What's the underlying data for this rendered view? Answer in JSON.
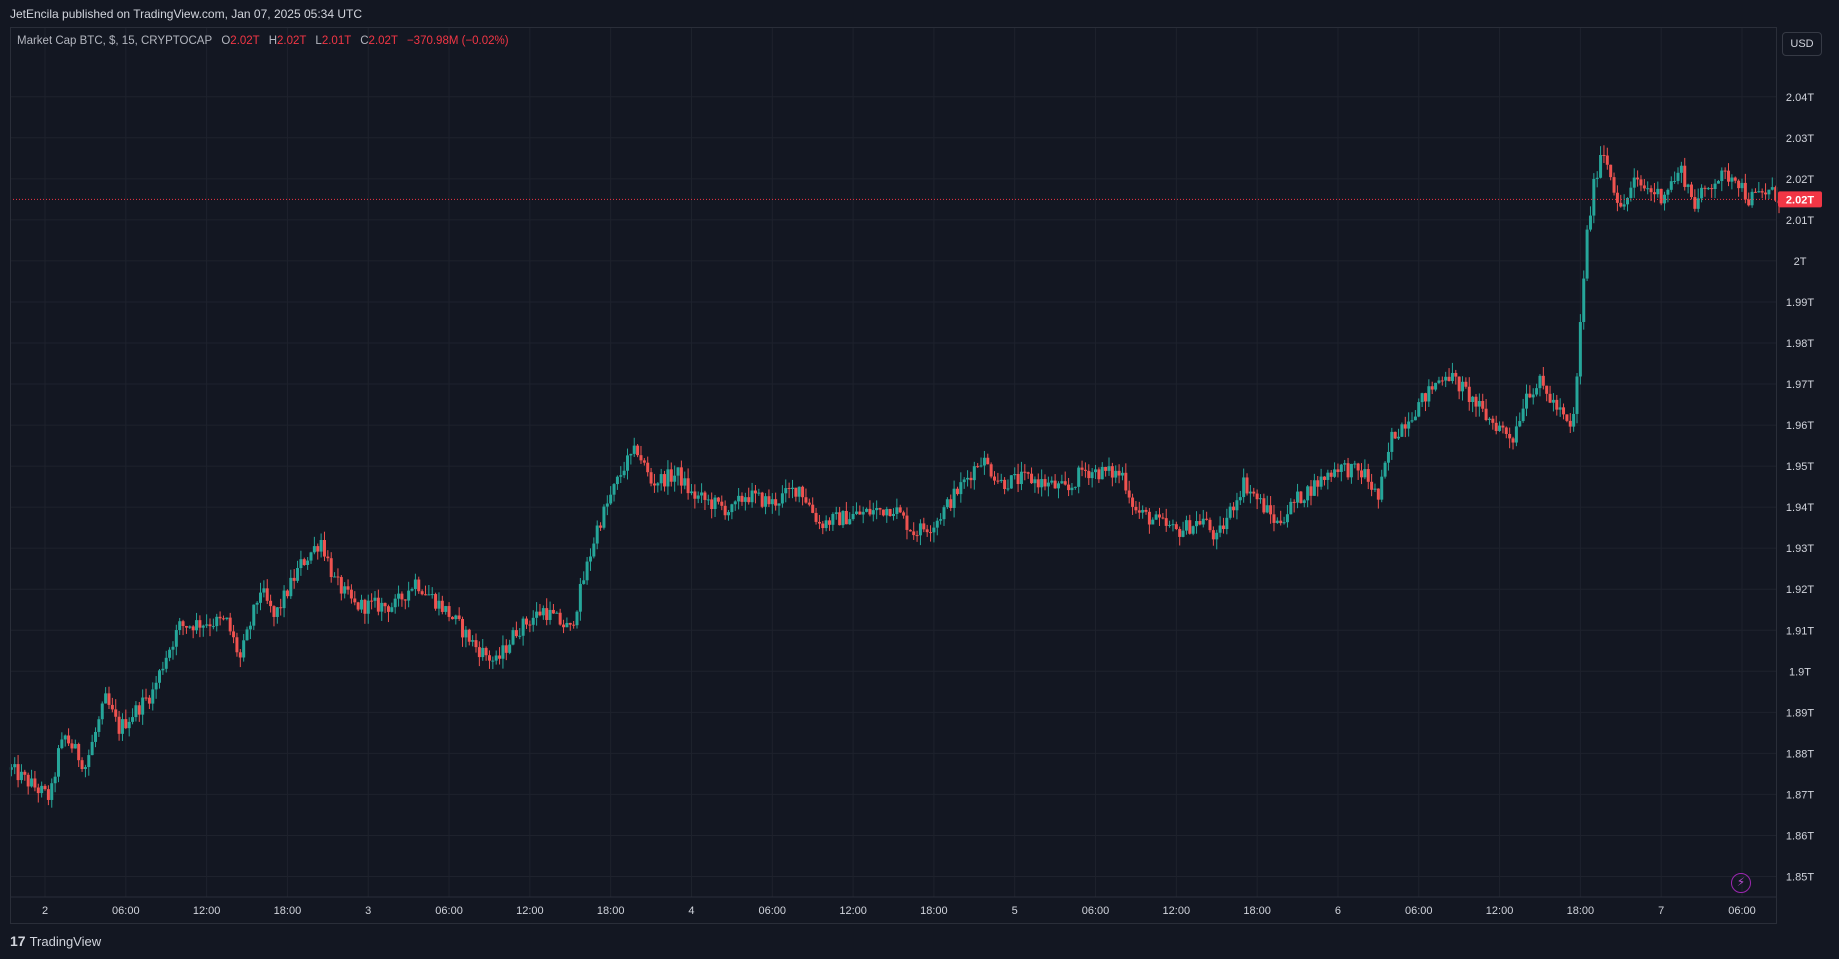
{
  "header": {
    "published_text": "JetEncila published on TradingView.com, Jan 07, 2025 05:34 UTC"
  },
  "legend": {
    "symbol": "Market Cap BTC, $, 15, CRYPTOCAP",
    "o_label": "O",
    "o_value": "2.02T",
    "h_label": "H",
    "h_value": "2.02T",
    "l_label": "L",
    "l_value": "2.01T",
    "c_label": "C",
    "c_value": "2.02T",
    "change": "−370.98M (−0.02%)"
  },
  "currency_button": "USD",
  "footer": {
    "brand": "TradingView",
    "logo": "17"
  },
  "colors": {
    "background": "#131722",
    "grid": "#1e222d",
    "up": "#26a69a",
    "down": "#ef5350",
    "price_line": "#f23645",
    "axis_text": "#d1d4dc"
  },
  "chart_data": {
    "type": "candlestick",
    "title": "Market Cap BTC, $, 15, CRYPTOCAP",
    "interval_minutes": 15,
    "y_unit": "USD (trillions)",
    "ylim": [
      1.845,
      2.057
    ],
    "y_ticks": [
      1.85,
      1.86,
      1.87,
      1.88,
      1.89,
      1.9,
      1.91,
      1.92,
      1.93,
      1.94,
      1.95,
      1.96,
      1.97,
      1.98,
      1.99,
      2.0,
      2.01,
      2.02,
      2.03,
      2.04
    ],
    "y_tick_labels": [
      "1.85T",
      "1.86T",
      "1.87T",
      "1.88T",
      "1.89T",
      "1.9T",
      "1.91T",
      "1.92T",
      "1.93T",
      "1.94T",
      "1.95T",
      "1.96T",
      "1.97T",
      "1.98T",
      "1.99T",
      "2T",
      "2.01T",
      "2.02T",
      "2.03T",
      "2.04T"
    ],
    "x_ticks": [
      {
        "label": "2",
        "hours": 0
      },
      {
        "label": "06:00",
        "hours": 6
      },
      {
        "label": "12:00",
        "hours": 12
      },
      {
        "label": "18:00",
        "hours": 18
      },
      {
        "label": "3",
        "hours": 24
      },
      {
        "label": "06:00",
        "hours": 30
      },
      {
        "label": "12:00",
        "hours": 36
      },
      {
        "label": "18:00",
        "hours": 42
      },
      {
        "label": "4",
        "hours": 48
      },
      {
        "label": "06:00",
        "hours": 54
      },
      {
        "label": "12:00",
        "hours": 60
      },
      {
        "label": "18:00",
        "hours": 66
      },
      {
        "label": "5",
        "hours": 72
      },
      {
        "label": "06:00",
        "hours": 78
      },
      {
        "label": "12:00",
        "hours": 84
      },
      {
        "label": "18:00",
        "hours": 90
      },
      {
        "label": "6",
        "hours": 96
      },
      {
        "label": "06:00",
        "hours": 102
      },
      {
        "label": "12:00",
        "hours": 108
      },
      {
        "label": "18:00",
        "hours": 114
      },
      {
        "label": "7",
        "hours": 120
      },
      {
        "label": "06:00",
        "hours": 126
      }
    ],
    "x_range_hours": [
      -2.6,
      128.6
    ],
    "last_price": 2.015,
    "last_price_label": "2.02T",
    "close_path": [
      {
        "h": -2.5,
        "v": 1.876
      },
      {
        "h": 0,
        "v": 1.87
      },
      {
        "h": 0.4,
        "v": 1.869
      },
      {
        "h": 1.0,
        "v": 1.88
      },
      {
        "h": 1.5,
        "v": 1.884
      },
      {
        "h": 3,
        "v": 1.877
      },
      {
        "h": 4.5,
        "v": 1.893
      },
      {
        "h": 5.5,
        "v": 1.886
      },
      {
        "h": 8,
        "v": 1.895
      },
      {
        "h": 9,
        "v": 1.904
      },
      {
        "h": 10,
        "v": 1.911
      },
      {
        "h": 12,
        "v": 1.912
      },
      {
        "h": 13.5,
        "v": 1.912
      },
      {
        "h": 14.5,
        "v": 1.903
      },
      {
        "h": 16,
        "v": 1.92
      },
      {
        "h": 17,
        "v": 1.913
      },
      {
        "h": 19,
        "v": 1.926
      },
      {
        "h": 20.5,
        "v": 1.932
      },
      {
        "h": 21.5,
        "v": 1.922
      },
      {
        "h": 23,
        "v": 1.916
      },
      {
        "h": 26,
        "v": 1.916
      },
      {
        "h": 27.5,
        "v": 1.922
      },
      {
        "h": 30,
        "v": 1.914
      },
      {
        "h": 32,
        "v": 1.906
      },
      {
        "h": 33.5,
        "v": 1.902
      },
      {
        "h": 35,
        "v": 1.91
      },
      {
        "h": 37,
        "v": 1.915
      },
      {
        "h": 39,
        "v": 1.91
      },
      {
        "h": 41,
        "v": 1.935
      },
      {
        "h": 43,
        "v": 1.95
      },
      {
        "h": 44,
        "v": 1.954
      },
      {
        "h": 45,
        "v": 1.946
      },
      {
        "h": 47,
        "v": 1.948
      },
      {
        "h": 48,
        "v": 1.943
      },
      {
        "h": 51,
        "v": 1.939
      },
      {
        "h": 52,
        "v": 1.943
      },
      {
        "h": 54,
        "v": 1.941
      },
      {
        "h": 56,
        "v": 1.945
      },
      {
        "h": 57.5,
        "v": 1.936
      },
      {
        "h": 60,
        "v": 1.938
      },
      {
        "h": 63,
        "v": 1.94
      },
      {
        "h": 64.5,
        "v": 1.934
      },
      {
        "h": 66,
        "v": 1.936
      },
      {
        "h": 68,
        "v": 1.945
      },
      {
        "h": 69.5,
        "v": 1.952
      },
      {
        "h": 71,
        "v": 1.946
      },
      {
        "h": 73,
        "v": 1.947
      },
      {
        "h": 76,
        "v": 1.944
      },
      {
        "h": 77,
        "v": 1.949
      },
      {
        "h": 80,
        "v": 1.948
      },
      {
        "h": 81,
        "v": 1.939
      },
      {
        "h": 84,
        "v": 1.934
      },
      {
        "h": 86,
        "v": 1.937
      },
      {
        "h": 87,
        "v": 1.932
      },
      {
        "h": 89,
        "v": 1.946
      },
      {
        "h": 91.5,
        "v": 1.936
      },
      {
        "h": 93,
        "v": 1.942
      },
      {
        "h": 96,
        "v": 1.95
      },
      {
        "h": 98,
        "v": 1.948
      },
      {
        "h": 99,
        "v": 1.942
      },
      {
        "h": 100,
        "v": 1.957
      },
      {
        "h": 102,
        "v": 1.965
      },
      {
        "h": 104,
        "v": 1.973
      },
      {
        "h": 105.5,
        "v": 1.968
      },
      {
        "h": 107,
        "v": 1.962
      },
      {
        "h": 109,
        "v": 1.957
      },
      {
        "h": 110,
        "v": 1.968
      },
      {
        "h": 111,
        "v": 1.97
      },
      {
        "h": 112.5,
        "v": 1.963
      },
      {
        "h": 113.4,
        "v": 1.958
      },
      {
        "h": 113.8,
        "v": 1.974
      },
      {
        "h": 114.4,
        "v": 2.004
      },
      {
        "h": 115,
        "v": 2.018
      },
      {
        "h": 115.6,
        "v": 2.028
      },
      {
        "h": 116.2,
        "v": 2.022
      },
      {
        "h": 117,
        "v": 2.012
      },
      {
        "h": 118,
        "v": 2.019
      },
      {
        "h": 120,
        "v": 2.016
      },
      {
        "h": 121.5,
        "v": 2.022
      },
      {
        "h": 122.5,
        "v": 2.014
      },
      {
        "h": 124,
        "v": 2.02
      },
      {
        "h": 125.5,
        "v": 2.021
      },
      {
        "h": 126.5,
        "v": 2.015
      },
      {
        "h": 128,
        "v": 2.017
      },
      {
        "h": 129,
        "v": 2.015
      }
    ]
  }
}
